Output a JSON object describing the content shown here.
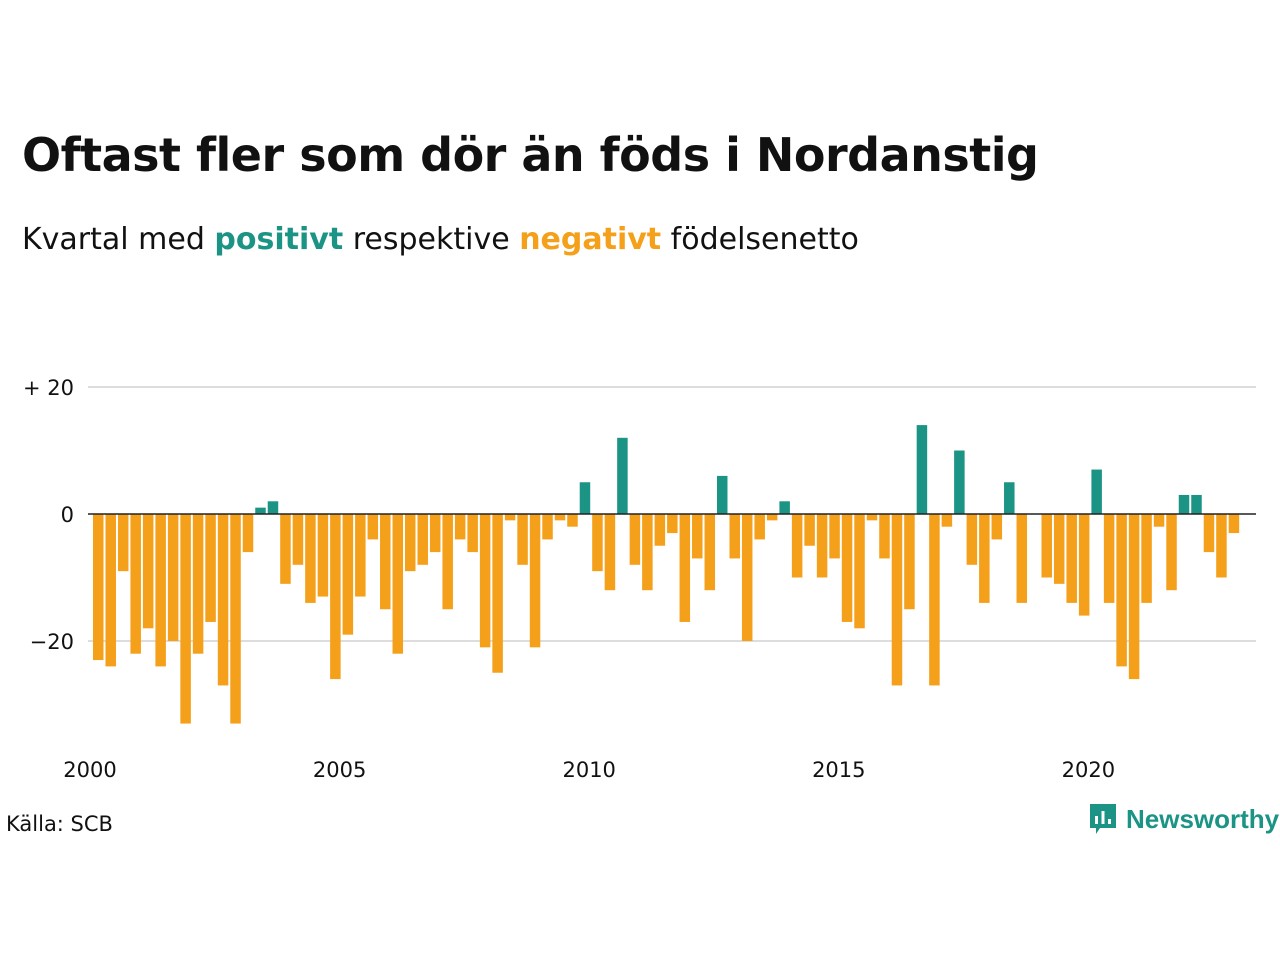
{
  "title": "Oftast fler som dör än föds i Nordanstig",
  "subtitle": {
    "prefix": "Kvartal med ",
    "positive_word": "positivt",
    "middle": " respektive ",
    "negative_word": "negativt",
    "suffix": " födelsenetto"
  },
  "source": "Källa: SCB",
  "brand": {
    "name": "Newsworthy",
    "logo_icon": "newsworthy-logo-icon"
  },
  "colors": {
    "positive": "#1b9485",
    "negative": "#f5a01a",
    "grid": "#dddddd",
    "zero_line": "#222222"
  },
  "chart_data": {
    "type": "bar",
    "x_start": "2000 Q1",
    "x_tick_labels": [
      "2000",
      "2005",
      "2010",
      "2015",
      "2020"
    ],
    "y_tick_labels": [
      "+ 20",
      "0",
      "−20"
    ],
    "y_ticks": [
      20,
      0,
      -20
    ],
    "ylim": [
      -35,
      25
    ],
    "grid": true,
    "values": [
      -23,
      -24,
      -9,
      -22,
      -18,
      -24,
      -20,
      -33,
      -22,
      -17,
      -27,
      -33,
      -6,
      1,
      2,
      -11,
      -8,
      -14,
      -13,
      -26,
      -19,
      -13,
      -4,
      -15,
      -22,
      -9,
      -8,
      -6,
      -15,
      -4,
      -6,
      -21,
      -25,
      -1,
      -8,
      -21,
      -4,
      -1,
      -2,
      5,
      -9,
      -12,
      12,
      -8,
      -12,
      -5,
      -3,
      -17,
      -7,
      -12,
      6,
      -7,
      -20,
      -4,
      -1,
      2,
      -10,
      -5,
      -10,
      -7,
      -17,
      -18,
      -1,
      -7,
      -27,
      -15,
      14,
      -27,
      -2,
      10,
      -8,
      -14,
      -4,
      5,
      -14,
      0,
      -10,
      -11,
      -14,
      -16,
      7,
      -14,
      -24,
      -26,
      -14,
      -2,
      -12,
      3,
      3,
      -6,
      -10,
      -3
    ]
  }
}
